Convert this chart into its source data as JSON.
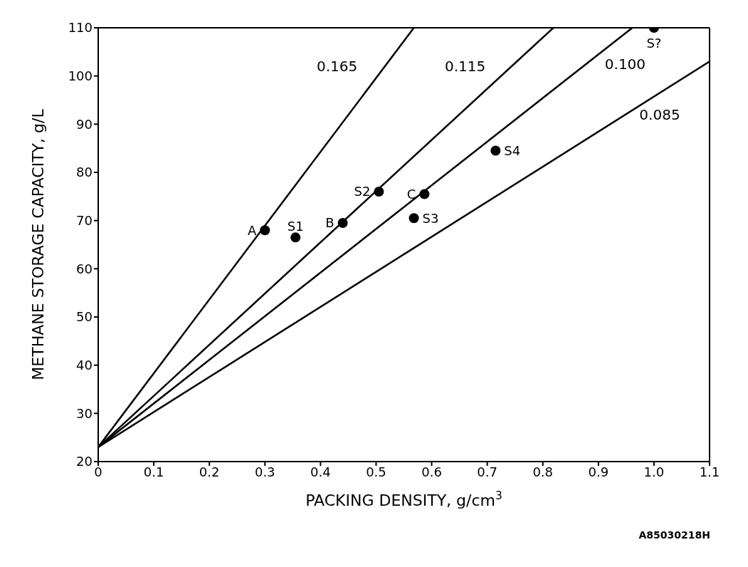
{
  "chart_data": {
    "type": "scatter",
    "xlabel": "PACKING DENSITY, g/cm$^{3}$",
    "ylabel": "METHANE STORAGE CAPACITY, g/L",
    "xlim": [
      0,
      1.1
    ],
    "xticks": [
      0,
      0.1,
      0.2,
      0.3,
      0.4,
      0.5,
      0.6,
      0.7,
      0.8,
      0.9,
      {
        "value": 1,
        "label": "1.0"
      },
      1.1
    ],
    "ylim": [
      20,
      110
    ],
    "yticks": [
      20,
      30,
      40,
      50,
      60,
      70,
      80,
      90,
      100,
      110
    ],
    "grid": false,
    "legend": false,
    "marker": "circle",
    "line_style": "solid",
    "series": [
      {
        "type": "line",
        "name": "0.165",
        "marker": "none",
        "color": "#000000",
        "x": [
          0,
          0.568
        ],
        "values": [
          23,
          110
        ]
      },
      {
        "type": "line",
        "name": "0.115",
        "marker": "none",
        "color": "#000000",
        "x": [
          0,
          0.819
        ],
        "values": [
          23,
          110
        ]
      },
      {
        "type": "line",
        "name": "0.100",
        "marker": "none",
        "color": "#000000",
        "x": [
          0,
          0.961
        ],
        "values": [
          23,
          110
        ]
      },
      {
        "type": "line",
        "name": "0.085",
        "marker": "none",
        "color": "#000000",
        "x": [
          0,
          1.1
        ],
        "values": [
          23,
          103
        ]
      },
      {
        "color": "#000000",
        "x": [
          0.3,
          0.355,
          0.44,
          0.505,
          0.568,
          0.587,
          0.715,
          1.0
        ],
        "values": [
          68,
          66.5,
          69.5,
          76,
          70.5,
          75.5,
          84.5,
          110
        ],
        "value_labels": [
          "A",
          "S1",
          "B",
          "S2",
          "S3",
          "C",
          "S4",
          "S?"
        ]
      }
    ],
    "annotations": [
      "A85030218H"
    ]
  }
}
